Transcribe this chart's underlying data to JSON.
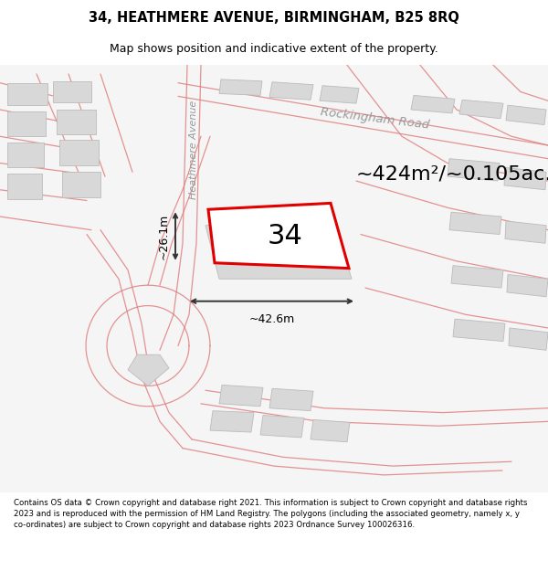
{
  "title_line1": "34, HEATHMERE AVENUE, BIRMINGHAM, B25 8RQ",
  "title_line2": "Map shows position and indicative extent of the property.",
  "footer_text": "Contains OS data © Crown copyright and database right 2021. This information is subject to Crown copyright and database rights 2023 and is reproduced with the permission of HM Land Registry. The polygons (including the associated geometry, namely x, y co-ordinates) are subject to Crown copyright and database rights 2023 Ordnance Survey 100026316.",
  "map_bg": "#f7f7f7",
  "building_color": "#d8d8d8",
  "building_outline": "#bbbbbb",
  "red_line_color": "#e00000",
  "pink_line_color": "#e08080",
  "dim_line_color": "#333333",
  "area_label": "~424m²/~0.105ac.",
  "house_number": "34",
  "dim_width": "~42.6m",
  "dim_height": "~26.1m",
  "road_label_1": "Rockingham Road",
  "road_label_2": "Heathmere Avenue",
  "title_fontsize": 10.5,
  "subtitle_fontsize": 9,
  "footer_fontsize": 6.2,
  "area_fontsize": 16,
  "number_fontsize": 22,
  "road_label_fontsize": 9.5
}
